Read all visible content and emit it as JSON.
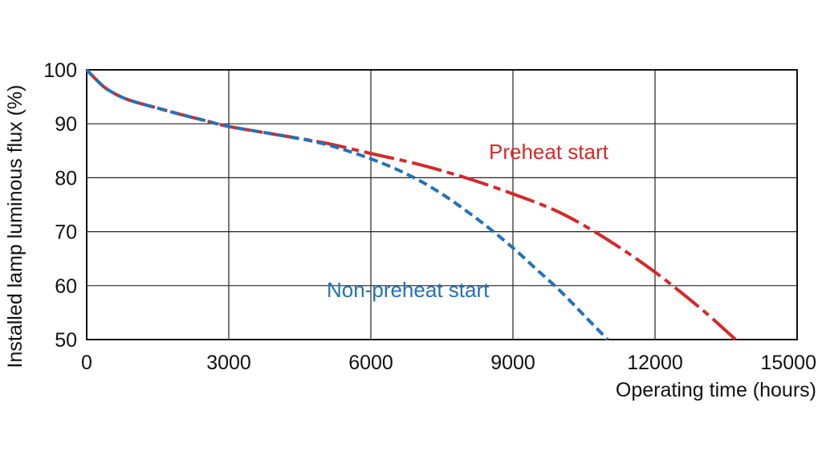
{
  "chart_data": {
    "type": "line",
    "title": "",
    "xlabel": "Operating time (hours)",
    "ylabel": "Installed lamp luminous flux  (%)",
    "xlim": [
      0,
      15000
    ],
    "ylim": [
      50,
      100
    ],
    "grid": true,
    "x_ticks": [
      "0",
      "3000",
      "6000",
      "9000",
      "12000",
      "15000"
    ],
    "y_ticks": [
      "100",
      "90",
      "80",
      "70",
      "60",
      "50"
    ],
    "series": [
      {
        "name": "Preheat start",
        "color": "#d62828",
        "style": "dash-dot",
        "x": [
          0,
          200,
          400,
          700,
          1000,
          1500,
          2000,
          2500,
          3000,
          4000,
          5000,
          6000,
          7000,
          8000,
          9000,
          10000,
          11000,
          12000,
          13000,
          13700
        ],
        "y": [
          100,
          98.2,
          96.6,
          95.1,
          94.1,
          92.9,
          91.7,
          90.6,
          89.5,
          88.0,
          86.5,
          84.5,
          82.5,
          80.0,
          77.0,
          73.5,
          68.5,
          62.5,
          55.5,
          50
        ]
      },
      {
        "name": "Non-preheat start",
        "color": "#2272b8",
        "style": "dashed",
        "x": [
          0,
          200,
          400,
          700,
          1000,
          1500,
          2000,
          2500,
          3000,
          4000,
          5000,
          6000,
          6800,
          7500,
          8300,
          9000,
          9500,
          10000,
          10500,
          11000
        ],
        "y": [
          100,
          98.2,
          96.6,
          95.1,
          94.1,
          92.9,
          91.7,
          90.6,
          89.5,
          88.0,
          86.3,
          83.5,
          80.5,
          77.0,
          72.0,
          67.0,
          63.0,
          59.0,
          54.5,
          50
        ]
      }
    ]
  }
}
